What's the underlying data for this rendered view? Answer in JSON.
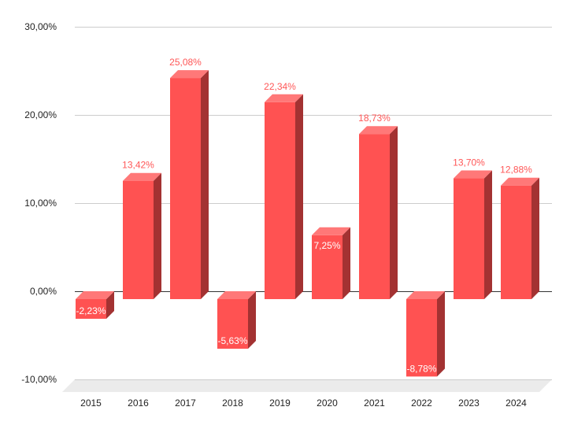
{
  "chart_data": {
    "type": "bar",
    "style": "3d-column",
    "title": "",
    "xlabel": "",
    "ylabel": "",
    "categories": [
      "2015",
      "2016",
      "2017",
      "2018",
      "2019",
      "2020",
      "2021",
      "2022",
      "2023",
      "2024"
    ],
    "values": [
      -2.23,
      13.42,
      25.08,
      -5.63,
      22.34,
      7.25,
      18.73,
      -8.78,
      13.7,
      12.88
    ],
    "data_labels": [
      "-2,23%",
      "13,42%",
      "25,08%",
      "-5,63%",
      "22,34%",
      "7,25%",
      "18,73%",
      "-8,78%",
      "13,70%",
      "12,88%"
    ],
    "ylim": [
      -10,
      30
    ],
    "yticks": [
      30,
      20,
      10,
      0,
      -10
    ],
    "ytick_labels": [
      "30,00%",
      "20,00%",
      "10,00%",
      "0,00%",
      "-10,00%"
    ],
    "grid": true,
    "legend": null,
    "colors": {
      "bar_front": "#ff5252",
      "bar_top": "#ff7878",
      "bar_side": "#a33232",
      "label_outside": "#ff5757",
      "label_inside": "#ffffff",
      "grid": "#cccccc",
      "zero_line": "#333333",
      "floor": "#ebebeb"
    }
  }
}
